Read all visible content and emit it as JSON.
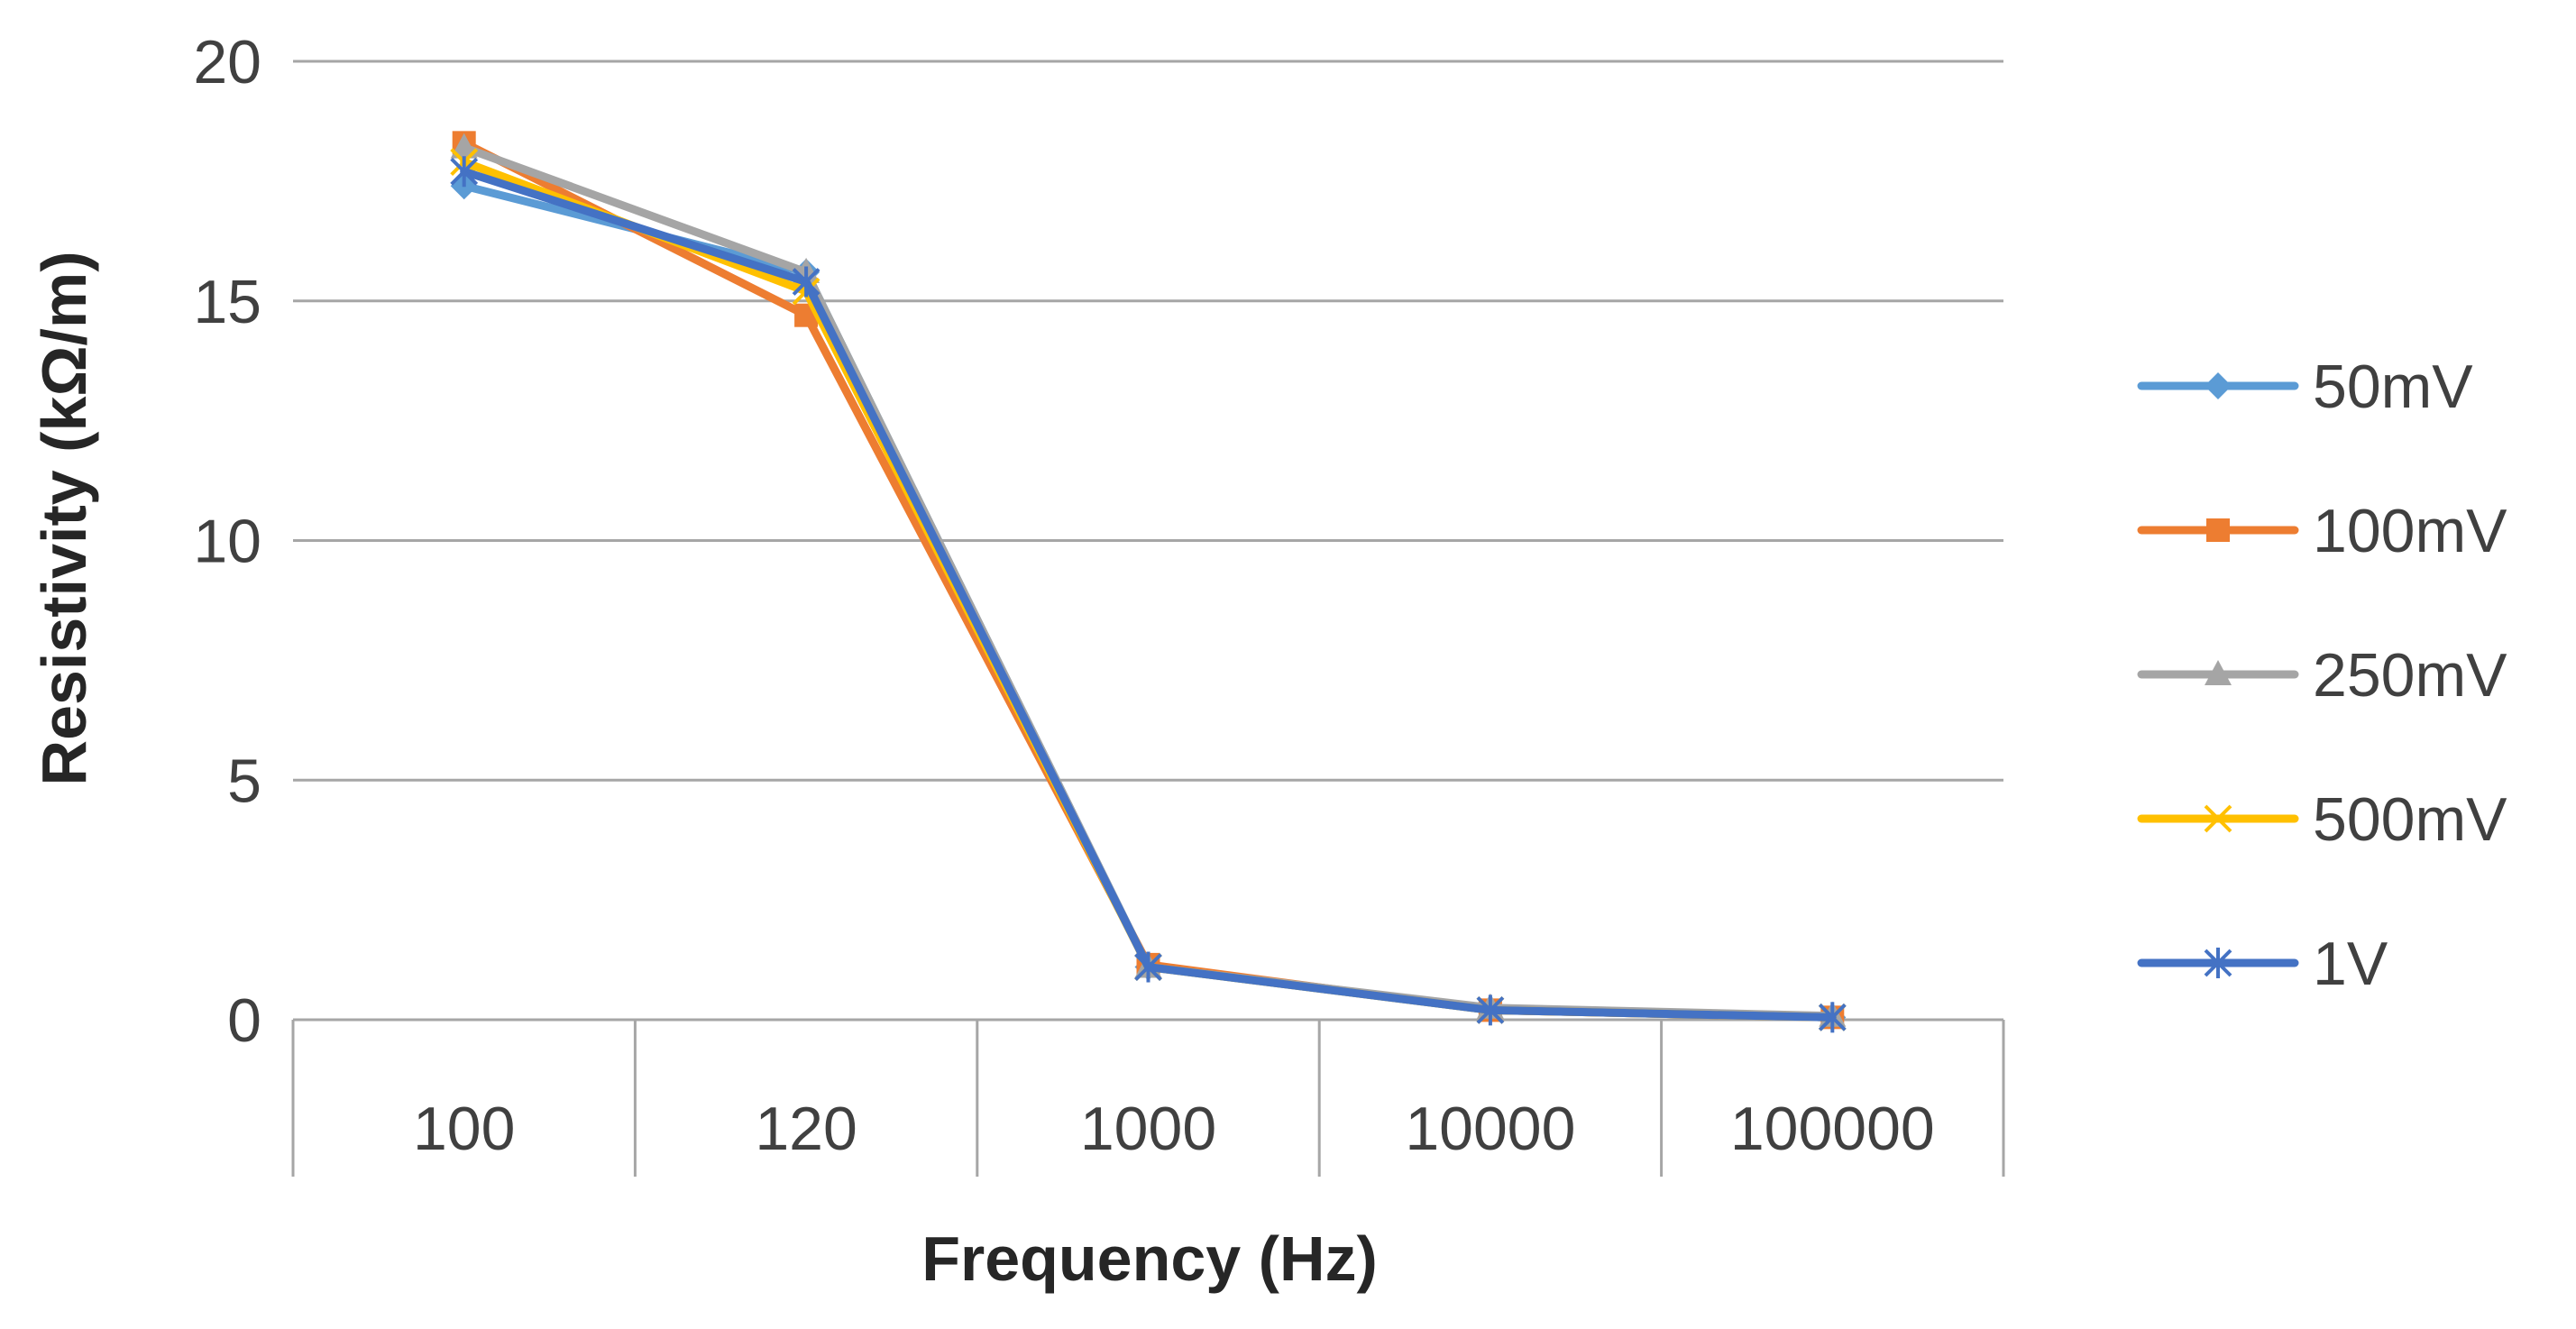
{
  "chart_data": {
    "type": "line",
    "title": "",
    "xlabel": "Frequency (Hz)",
    "ylabel": "Resistivity (kΩ/m)",
    "categories": [
      "100",
      "120",
      "1000",
      "10000",
      "100000"
    ],
    "ylim": [
      0,
      20
    ],
    "yticks": [
      "0",
      "5",
      "10",
      "15",
      "20"
    ],
    "grid": true,
    "legend_position": "right",
    "series": [
      {
        "name": "50mV",
        "color": "#5B9BD5",
        "marker": "diamond",
        "values": [
          17.4,
          15.6,
          1.1,
          0.2,
          0.05
        ]
      },
      {
        "name": "100mV",
        "color": "#ED7D31",
        "marker": "square",
        "values": [
          18.3,
          14.7,
          1.15,
          0.2,
          0.05
        ]
      },
      {
        "name": "250mV",
        "color": "#A5A5A5",
        "marker": "triangle",
        "values": [
          18.2,
          15.6,
          1.1,
          0.25,
          0.08
        ]
      },
      {
        "name": "500mV",
        "color": "#FFC000",
        "marker": "x",
        "values": [
          17.9,
          15.2,
          1.1,
          0.2,
          0.05
        ]
      },
      {
        "name": "1V",
        "color": "#4472C4",
        "marker": "star",
        "values": [
          17.7,
          15.4,
          1.1,
          0.2,
          0.05
        ]
      }
    ]
  }
}
